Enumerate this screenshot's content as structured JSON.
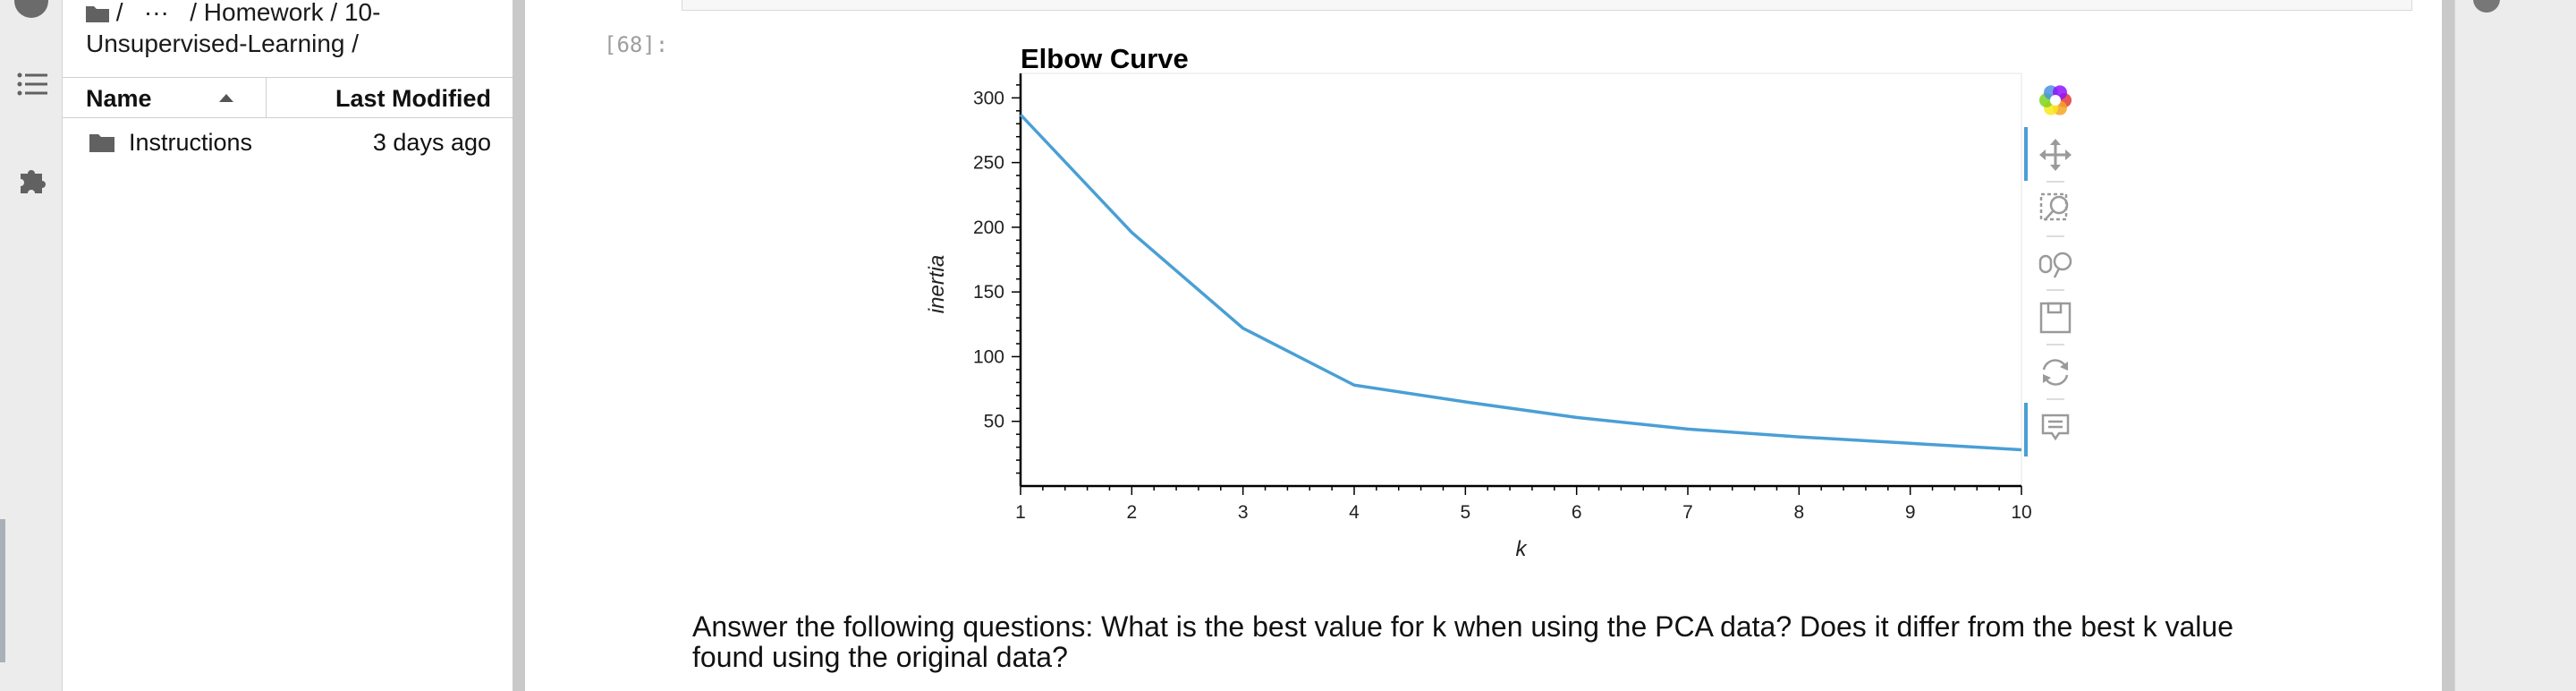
{
  "file_browser": {
    "breadcrumb": {
      "sep1": "/",
      "ellipsis": "···",
      "path_line1": "/ Homework / 10-",
      "path_line2": "Unsupervised-Learning /"
    },
    "columns": {
      "name": "Name",
      "last_modified": "Last Modified"
    },
    "rows": [
      {
        "name": "Instructions",
        "modified": "3 days ago",
        "icon": "folder-icon"
      }
    ]
  },
  "notebook": {
    "cell_prompt": "[68]:",
    "markdown_line1": "Answer the following questions: What is the best value for k when using the PCA data? Does it differ from the best k value",
    "markdown_line2": "found using the original data?"
  },
  "toolbar": {
    "icons": [
      "bokeh-logo-icon",
      "pan-icon",
      "box-zoom-icon",
      "wheel-zoom-icon",
      "save-icon",
      "reset-icon",
      "hover-icon"
    ]
  },
  "colors": {
    "line": "#4a9fd5",
    "accent": "#4a9fd5"
  },
  "chart_data": {
    "type": "line",
    "title": "Elbow Curve",
    "xlabel": "k",
    "ylabel": "inertia",
    "x": [
      1,
      2,
      3,
      4,
      5,
      6,
      7,
      8,
      9,
      10
    ],
    "series": [
      {
        "values": [
          287,
          196,
          122,
          78,
          65,
          53,
          44,
          38,
          33,
          28
        ]
      }
    ],
    "xlim": [
      1,
      10
    ],
    "ylim": [
      0,
      312
    ],
    "xticks": [
      "1",
      "2",
      "3",
      "4",
      "5",
      "6",
      "7",
      "8",
      "9",
      "10"
    ],
    "yticks": [
      "50",
      "100",
      "150",
      "200",
      "250",
      "300"
    ],
    "grid": false
  }
}
